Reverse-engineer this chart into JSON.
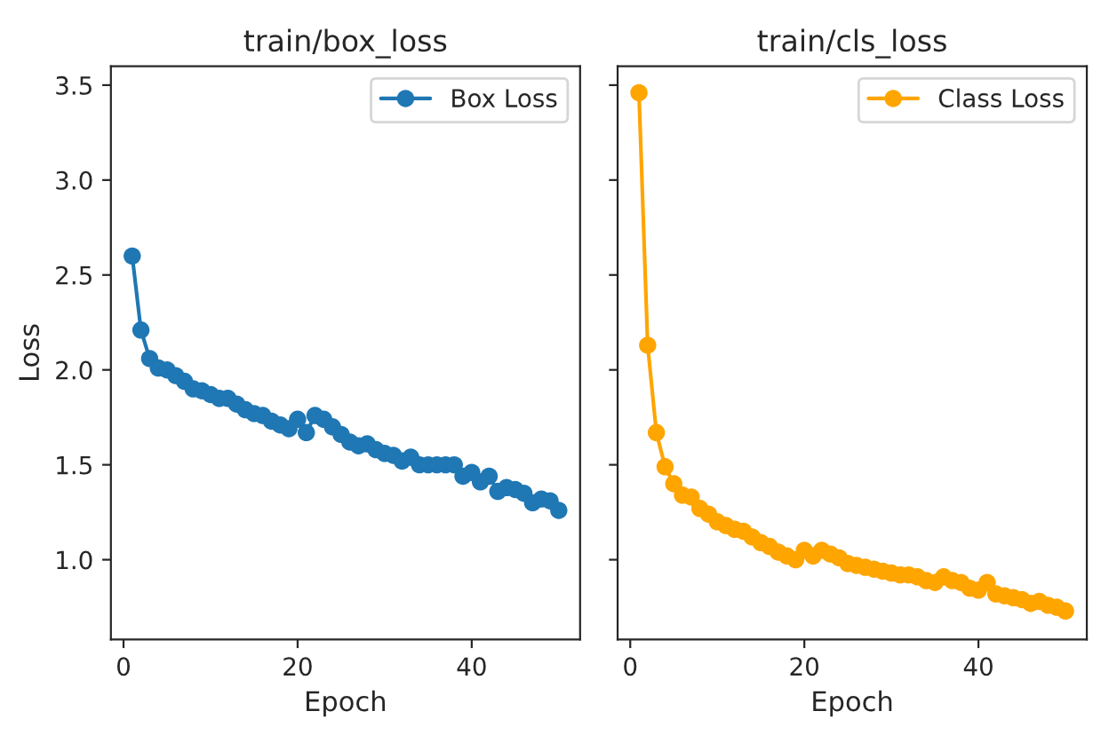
{
  "chart_data": [
    {
      "type": "line",
      "title": "train/box_loss",
      "xlabel": "Epoch",
      "ylabel": "Loss",
      "marker": "circle",
      "line_style": "solid",
      "legend": "top right",
      "grid": false,
      "x": [
        1,
        2,
        3,
        4,
        5,
        6,
        7,
        8,
        9,
        10,
        11,
        12,
        13,
        14,
        15,
        16,
        17,
        18,
        19,
        20,
        21,
        22,
        23,
        24,
        25,
        26,
        27,
        28,
        29,
        30,
        31,
        32,
        33,
        34,
        35,
        36,
        37,
        38,
        39,
        40,
        41,
        42,
        43,
        44,
        45,
        46,
        47,
        48,
        49,
        50
      ],
      "series": [
        {
          "name": "Box Loss",
          "color": "#1f77b4",
          "values": [
            2.6,
            2.21,
            2.06,
            2.01,
            2.0,
            1.97,
            1.94,
            1.9,
            1.89,
            1.87,
            1.85,
            1.85,
            1.82,
            1.79,
            1.77,
            1.76,
            1.73,
            1.71,
            1.69,
            1.74,
            1.67,
            1.76,
            1.74,
            1.7,
            1.66,
            1.62,
            1.6,
            1.61,
            1.58,
            1.56,
            1.55,
            1.52,
            1.54,
            1.5,
            1.5,
            1.5,
            1.5,
            1.5,
            1.44,
            1.46,
            1.41,
            1.44,
            1.36,
            1.38,
            1.37,
            1.35,
            1.3,
            1.32,
            1.31,
            1.26
          ]
        }
      ],
      "xlim": [
        -1.45,
        52.45
      ],
      "xticks": [
        0,
        20,
        40
      ],
      "ylim": [
        0.58,
        3.6
      ],
      "yticks": [
        {
          "value": 1.0,
          "label": "1.0"
        },
        {
          "value": 1.5,
          "label": "1.5"
        },
        {
          "value": 2.0,
          "label": "2.0"
        },
        {
          "value": 2.5,
          "label": "2.5"
        },
        {
          "value": 3.0,
          "label": "3.0"
        },
        {
          "value": 3.5,
          "label": "3.5"
        }
      ]
    },
    {
      "type": "line",
      "title": "train/cls_loss",
      "xlabel": "Epoch",
      "marker": "circle",
      "line_style": "solid",
      "legend": "top right",
      "grid": false,
      "tick_labels": "x",
      "x": [
        1,
        2,
        3,
        4,
        5,
        6,
        7,
        8,
        9,
        10,
        11,
        12,
        13,
        14,
        15,
        16,
        17,
        18,
        19,
        20,
        21,
        22,
        23,
        24,
        25,
        26,
        27,
        28,
        29,
        30,
        31,
        32,
        33,
        34,
        35,
        36,
        37,
        38,
        39,
        40,
        41,
        42,
        43,
        44,
        45,
        46,
        47,
        48,
        49,
        50
      ],
      "series": [
        {
          "name": "Class Loss",
          "color": "#ffa500",
          "values": [
            3.46,
            2.13,
            1.67,
            1.49,
            1.4,
            1.34,
            1.33,
            1.27,
            1.24,
            1.2,
            1.18,
            1.16,
            1.15,
            1.12,
            1.09,
            1.07,
            1.04,
            1.02,
            1.0,
            1.05,
            1.02,
            1.05,
            1.03,
            1.01,
            0.98,
            0.97,
            0.96,
            0.95,
            0.94,
            0.93,
            0.92,
            0.92,
            0.91,
            0.89,
            0.88,
            0.91,
            0.89,
            0.88,
            0.85,
            0.84,
            0.88,
            0.82,
            0.81,
            0.8,
            0.79,
            0.77,
            0.78,
            0.76,
            0.75,
            0.73
          ]
        }
      ],
      "xlim": [
        -1.45,
        52.45
      ],
      "xticks": [
        0,
        20,
        40
      ],
      "ylim": [
        0.58,
        3.6
      ],
      "yticks": [
        1.0,
        1.5,
        2.0,
        2.5,
        3.0,
        3.5
      ]
    }
  ]
}
